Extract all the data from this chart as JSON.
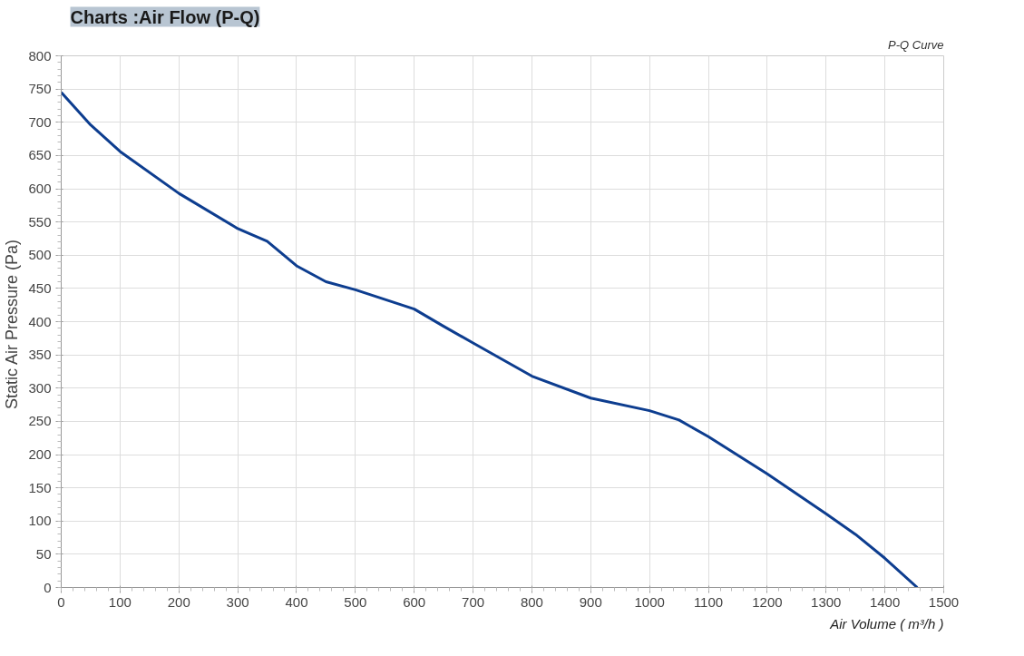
{
  "chart_data": {
    "type": "line",
    "title": "Charts :Air Flow (P-Q)",
    "subtitle": "P-Q Curve",
    "xlabel": "Air Volume ( m³/h )",
    "ylabel": "Static Air Pressure  (Pa)",
    "x": [
      0,
      50,
      100,
      200,
      300,
      350,
      400,
      450,
      500,
      600,
      650,
      700,
      800,
      900,
      1000,
      1050,
      1100,
      1200,
      1300,
      1350,
      1400,
      1455
    ],
    "series": [
      {
        "color": "#0d3d8f",
        "values": [
          745,
          696,
          656,
          593,
          540,
          521,
          484,
          460,
          448,
          419,
          393,
          368,
          318,
          285,
          266,
          252,
          227,
          171,
          111,
          80,
          44,
          0
        ]
      }
    ],
    "xlim": [
      0,
      1500
    ],
    "ylim": [
      0,
      800
    ],
    "xticks": [
      0,
      100,
      200,
      300,
      400,
      500,
      600,
      700,
      800,
      900,
      1000,
      1100,
      1200,
      1300,
      1400,
      1500
    ],
    "yticks": [
      0,
      50,
      100,
      150,
      200,
      250,
      300,
      350,
      400,
      450,
      500,
      550,
      600,
      650,
      700,
      750,
      800
    ],
    "grid": true,
    "marker": "none",
    "line_style": "solid"
  }
}
